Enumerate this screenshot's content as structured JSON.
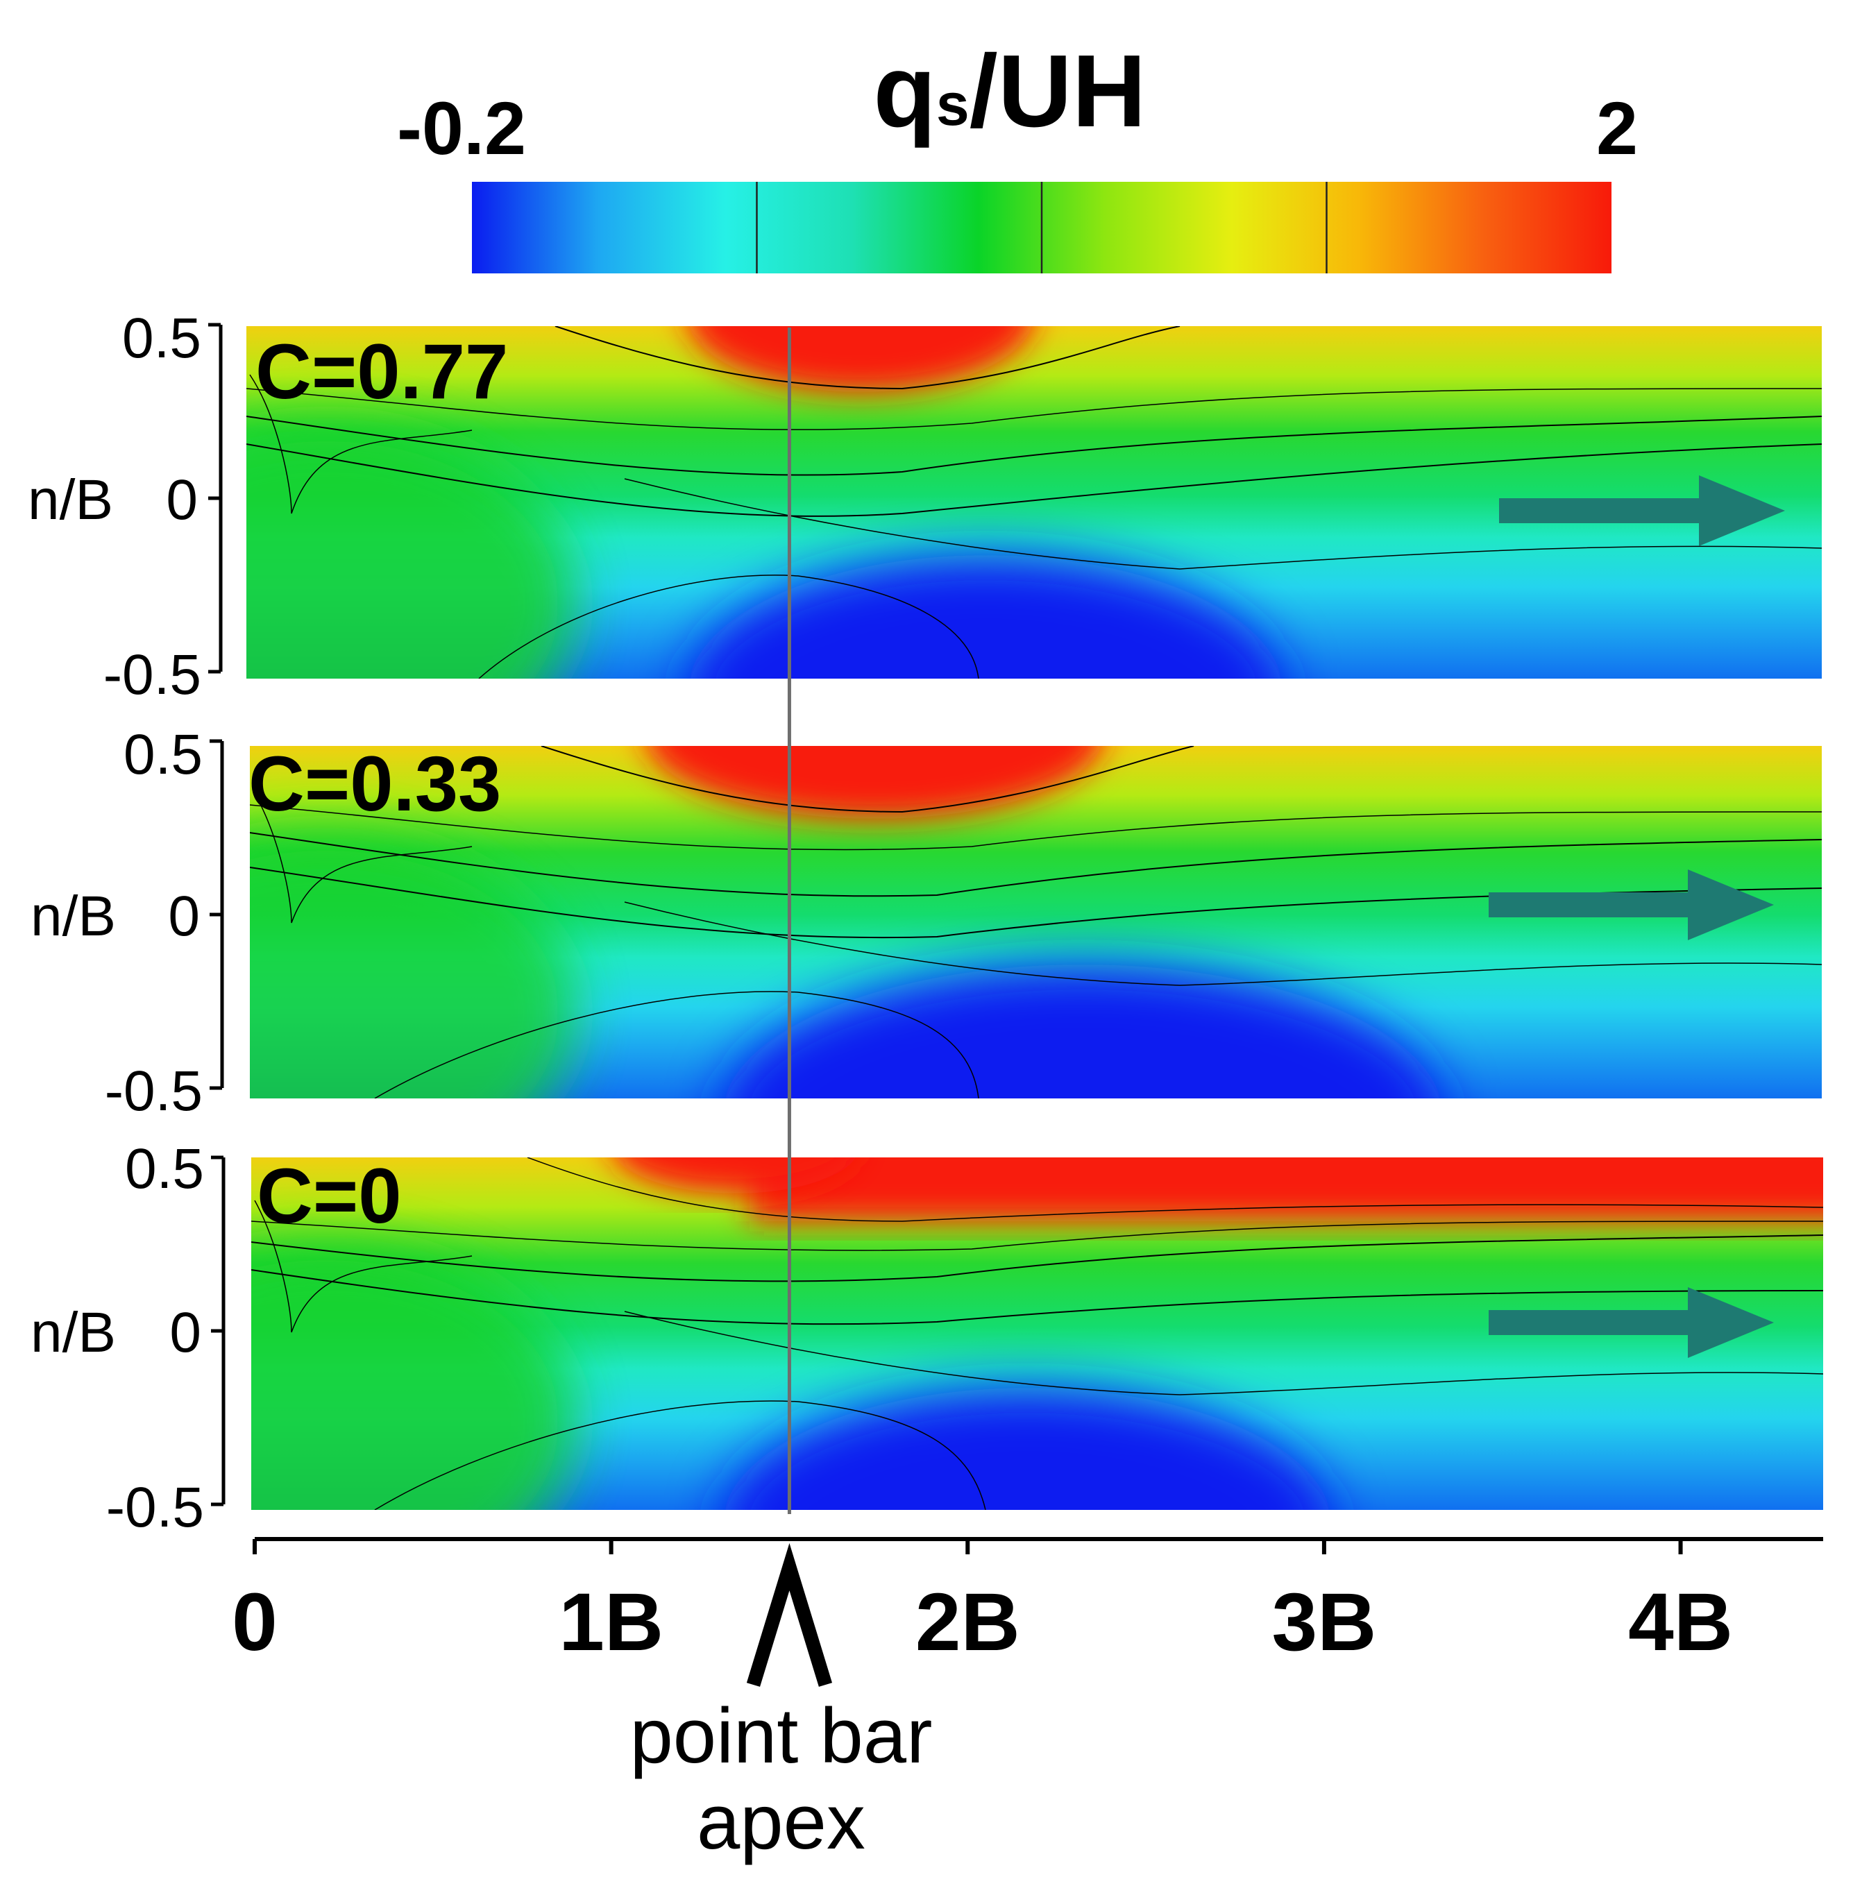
{
  "colorbar": {
    "title_main": "q",
    "title_sub": "s",
    "title_rest": "/UH",
    "min_label": "-0.2",
    "max_label": "2",
    "min": -0.2,
    "max": 2,
    "stops": [
      "#0a1cf0",
      "#1ea8f2",
      "#26f0e6",
      "#1ee0b4",
      "#0ad428",
      "#8ee610",
      "#e6ee10",
      "#f8b808",
      "#f86010",
      "#f81a0a"
    ],
    "contour_ticks": [
      0.25,
      0.5,
      0.75
    ]
  },
  "chart_data": [
    {
      "type": "heatmap",
      "panel_label": "C=0.77",
      "ylabel": "n/B",
      "y_ticks": [
        "0.5",
        "0",
        "-0.5"
      ],
      "ylim": [
        -0.5,
        0.5
      ],
      "xlim": [
        0,
        4.4
      ],
      "high_zone": "outer bank (n/B = 0.5) from about 1.5B to 2B",
      "low_zone": "inner bank (n/B = -0.5) from about 1.7B to 2.5B"
    },
    {
      "type": "heatmap",
      "panel_label": "C=0.33",
      "ylabel": "n/B",
      "y_ticks": [
        "0.5",
        "0",
        "-0.5"
      ],
      "ylim": [
        -0.5,
        0.5
      ],
      "xlim": [
        0,
        4.4
      ],
      "high_zone": "outer bank (n/B = 0.5) from about 1.4B to 2.2B",
      "low_zone": "inner bank (n/B = -0.5) from about 1.8B to 2.8B"
    },
    {
      "type": "heatmap",
      "panel_label": "C=0",
      "ylabel": "n/B",
      "y_ticks": [
        "0.5",
        "0",
        "-0.5"
      ],
      "ylim": [
        -0.5,
        0.5
      ],
      "xlim": [
        0,
        4.4
      ],
      "high_zone": "outer bank (n/B = 0.5) from about 1.3B to 4.4B",
      "low_zone": "inner bank (n/B = -0.5) from about 1.6B to 2.6B"
    }
  ],
  "x_axis": {
    "ticks": [
      {
        "value": 0,
        "label": "0"
      },
      {
        "value": 1,
        "label": "1B"
      },
      {
        "value": 2,
        "label": "2B"
      },
      {
        "value": 3,
        "label": "3B"
      },
      {
        "value": 4,
        "label": "4B"
      }
    ],
    "xlim": [
      0,
      4.4
    ]
  },
  "annotation": {
    "line1": "point bar",
    "line2": "apex",
    "x_value": 1.5
  },
  "flow_arrow_color": "#1e7a72"
}
